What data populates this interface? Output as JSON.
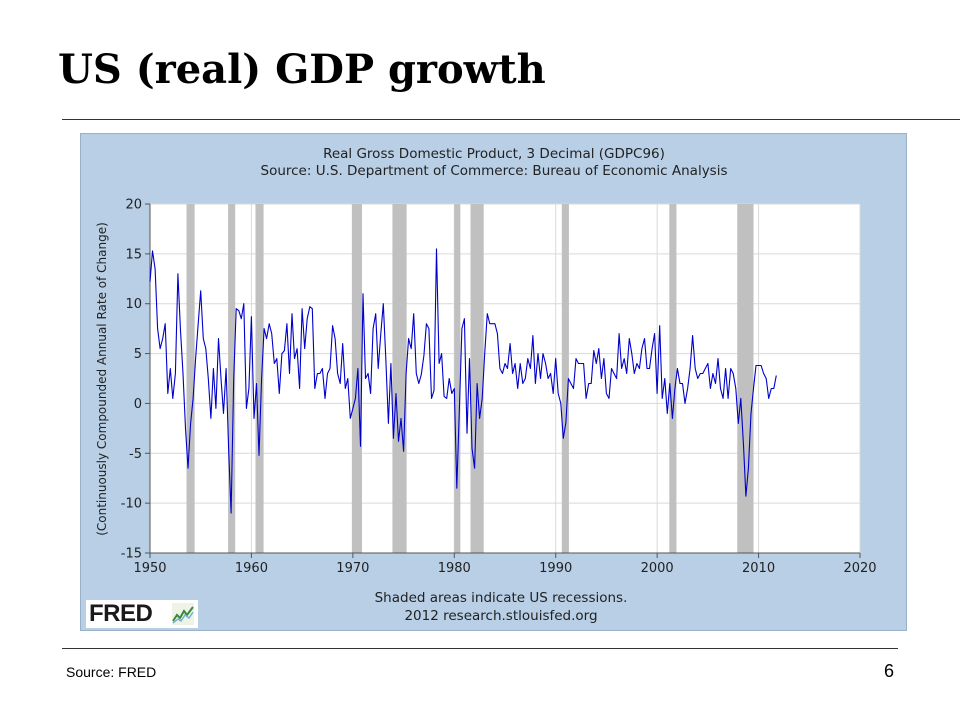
{
  "slide": {
    "title": "US (real) GDP growth",
    "source_note": "Source:  FRED",
    "page_number": "6"
  },
  "logo": {
    "text": "FRED"
  },
  "colors": {
    "background": "#b8cfe6",
    "plot_area": "#ffffff",
    "line": "#0000cc",
    "recession": "#c0c0c0",
    "grid": "#d9d9d9"
  },
  "chart_data": {
    "type": "line",
    "title": "Real Gross Domestic Product, 3 Decimal (GDPC96)",
    "subtitle": "Source: U.S. Department of Commerce: Bureau of Economic Analysis",
    "ylabel": "(Continuously Compounded Annual Rate of Change)",
    "xlabel": "Shaded areas indicate US recessions.",
    "footnote": "2012 research.stlouisfed.org",
    "xlim": [
      1950,
      2020
    ],
    "ylim": [
      -15,
      20
    ],
    "x_ticks": [
      "1950",
      "1960",
      "1970",
      "1980",
      "1990",
      "2000",
      "2010",
      "2020"
    ],
    "y_ticks": [
      "20",
      "15",
      "10",
      "5",
      "0",
      "-5",
      "-10",
      "-15"
    ],
    "grid": true,
    "recessions": [
      [
        1953.6,
        1954.4
      ],
      [
        1957.7,
        1958.4
      ],
      [
        1960.4,
        1961.2
      ],
      [
        1969.9,
        1970.9
      ],
      [
        1973.9,
        1975.3
      ],
      [
        1980.0,
        1980.6
      ],
      [
        1981.6,
        1982.9
      ],
      [
        1990.6,
        1991.3
      ],
      [
        2001.2,
        2001.9
      ],
      [
        2007.9,
        2009.5
      ]
    ],
    "series": [
      {
        "values": [
          [
            1950.0,
            12.2
          ],
          [
            1950.25,
            15.3
          ],
          [
            1950.5,
            13.5
          ],
          [
            1950.75,
            7.5
          ],
          [
            1951.0,
            5.5
          ],
          [
            1951.25,
            6.5
          ],
          [
            1951.5,
            8.0
          ],
          [
            1951.75,
            1.0
          ],
          [
            1952.0,
            3.5
          ],
          [
            1952.25,
            0.5
          ],
          [
            1952.5,
            3.0
          ],
          [
            1952.75,
            13.0
          ],
          [
            1953.0,
            7.5
          ],
          [
            1953.25,
            3.0
          ],
          [
            1953.5,
            -2.5
          ],
          [
            1953.75,
            -6.5
          ],
          [
            1954.0,
            -2.0
          ],
          [
            1954.25,
            0.5
          ],
          [
            1954.5,
            4.5
          ],
          [
            1954.75,
            8.0
          ],
          [
            1955.0,
            11.3
          ],
          [
            1955.25,
            6.5
          ],
          [
            1955.5,
            5.5
          ],
          [
            1955.75,
            2.5
          ],
          [
            1956.0,
            -1.5
          ],
          [
            1956.25,
            3.5
          ],
          [
            1956.5,
            -0.5
          ],
          [
            1956.75,
            6.5
          ],
          [
            1957.0,
            2.5
          ],
          [
            1957.25,
            -1.0
          ],
          [
            1957.5,
            3.5
          ],
          [
            1957.75,
            -4.5
          ],
          [
            1958.0,
            -11.0
          ],
          [
            1958.25,
            2.5
          ],
          [
            1958.5,
            9.5
          ],
          [
            1958.75,
            9.3
          ],
          [
            1959.0,
            8.5
          ],
          [
            1959.25,
            10.0
          ],
          [
            1959.5,
            -0.5
          ],
          [
            1959.75,
            1.5
          ],
          [
            1960.0,
            8.7
          ],
          [
            1960.25,
            -1.5
          ],
          [
            1960.5,
            2.0
          ],
          [
            1960.75,
            -5.2
          ],
          [
            1961.0,
            2.5
          ],
          [
            1961.25,
            7.5
          ],
          [
            1961.5,
            6.5
          ],
          [
            1961.75,
            8.0
          ],
          [
            1962.0,
            7.0
          ],
          [
            1962.25,
            4.0
          ],
          [
            1962.5,
            4.5
          ],
          [
            1962.75,
            1.0
          ],
          [
            1963.0,
            5.0
          ],
          [
            1963.25,
            5.3
          ],
          [
            1963.5,
            8.0
          ],
          [
            1963.75,
            3.0
          ],
          [
            1964.0,
            9.0
          ],
          [
            1964.25,
            4.5
          ],
          [
            1964.5,
            5.5
          ],
          [
            1964.75,
            1.5
          ],
          [
            1965.0,
            9.5
          ],
          [
            1965.25,
            5.5
          ],
          [
            1965.5,
            8.5
          ],
          [
            1965.75,
            9.7
          ],
          [
            1966.0,
            9.5
          ],
          [
            1966.25,
            1.5
          ],
          [
            1966.5,
            3.0
          ],
          [
            1966.75,
            3.0
          ],
          [
            1967.0,
            3.5
          ],
          [
            1967.25,
            0.5
          ],
          [
            1967.5,
            3.0
          ],
          [
            1967.75,
            3.5
          ],
          [
            1968.0,
            7.8
          ],
          [
            1968.25,
            6.5
          ],
          [
            1968.5,
            3.0
          ],
          [
            1968.75,
            2.0
          ],
          [
            1969.0,
            6.0
          ],
          [
            1969.25,
            1.5
          ],
          [
            1969.5,
            2.5
          ],
          [
            1969.75,
            -1.5
          ],
          [
            1970.0,
            -0.5
          ],
          [
            1970.25,
            0.5
          ],
          [
            1970.5,
            3.5
          ],
          [
            1970.75,
            -4.3
          ],
          [
            1971.0,
            11.0
          ],
          [
            1971.25,
            2.5
          ],
          [
            1971.5,
            3.0
          ],
          [
            1971.75,
            1.0
          ],
          [
            1972.0,
            7.5
          ],
          [
            1972.25,
            9.0
          ],
          [
            1972.5,
            3.5
          ],
          [
            1972.75,
            7.0
          ],
          [
            1973.0,
            10.0
          ],
          [
            1973.25,
            4.5
          ],
          [
            1973.5,
            -2.0
          ],
          [
            1973.75,
            4.0
          ],
          [
            1974.0,
            -3.5
          ],
          [
            1974.25,
            1.0
          ],
          [
            1974.5,
            -3.8
          ],
          [
            1974.75,
            -1.5
          ],
          [
            1975.0,
            -4.8
          ],
          [
            1975.25,
            3.0
          ],
          [
            1975.5,
            6.5
          ],
          [
            1975.75,
            5.5
          ],
          [
            1976.0,
            9.0
          ],
          [
            1976.25,
            3.0
          ],
          [
            1976.5,
            2.0
          ],
          [
            1976.75,
            2.9
          ],
          [
            1977.0,
            4.8
          ],
          [
            1977.25,
            8.0
          ],
          [
            1977.5,
            7.5
          ],
          [
            1977.75,
            0.5
          ],
          [
            1978.0,
            1.3
          ],
          [
            1978.25,
            15.5
          ],
          [
            1978.5,
            4.0
          ],
          [
            1978.75,
            5.0
          ],
          [
            1979.0,
            0.7
          ],
          [
            1979.25,
            0.5
          ],
          [
            1979.5,
            2.5
          ],
          [
            1979.75,
            1.0
          ],
          [
            1980.0,
            1.5
          ],
          [
            1980.25,
            -8.5
          ],
          [
            1980.5,
            -0.5
          ],
          [
            1980.75,
            7.5
          ],
          [
            1981.0,
            8.5
          ],
          [
            1981.25,
            -3.0
          ],
          [
            1981.5,
            4.5
          ],
          [
            1981.75,
            -4.5
          ],
          [
            1982.0,
            -6.5
          ],
          [
            1982.25,
            2.0
          ],
          [
            1982.5,
            -1.5
          ],
          [
            1982.75,
            0.5
          ],
          [
            1983.0,
            5.0
          ],
          [
            1983.25,
            9.0
          ],
          [
            1983.5,
            8.0
          ],
          [
            1983.75,
            8.0
          ],
          [
            1984.0,
            8.0
          ],
          [
            1984.25,
            7.0
          ],
          [
            1984.5,
            3.5
          ],
          [
            1984.75,
            3.0
          ],
          [
            1985.0,
            4.0
          ],
          [
            1985.25,
            3.5
          ],
          [
            1985.5,
            6.0
          ],
          [
            1985.75,
            3.0
          ],
          [
            1986.0,
            4.0
          ],
          [
            1986.25,
            1.5
          ],
          [
            1986.5,
            4.0
          ],
          [
            1986.75,
            2.0
          ],
          [
            1987.0,
            2.5
          ],
          [
            1987.25,
            4.5
          ],
          [
            1987.5,
            3.5
          ],
          [
            1987.75,
            6.8
          ],
          [
            1988.0,
            2.0
          ],
          [
            1988.25,
            5.0
          ],
          [
            1988.5,
            2.5
          ],
          [
            1988.75,
            5.0
          ],
          [
            1989.0,
            4.0
          ],
          [
            1989.25,
            2.5
          ],
          [
            1989.5,
            3.0
          ],
          [
            1989.75,
            1.0
          ],
          [
            1990.0,
            4.5
          ],
          [
            1990.25,
            1.0
          ],
          [
            1990.5,
            0.0
          ],
          [
            1990.75,
            -3.5
          ],
          [
            1991.0,
            -1.9
          ],
          [
            1991.25,
            2.5
          ],
          [
            1991.5,
            2.0
          ],
          [
            1991.75,
            1.5
          ],
          [
            1992.0,
            4.5
          ],
          [
            1992.25,
            4.0
          ],
          [
            1992.5,
            4.0
          ],
          [
            1992.75,
            4.0
          ],
          [
            1993.0,
            0.5
          ],
          [
            1993.25,
            2.0
          ],
          [
            1993.5,
            2.0
          ],
          [
            1993.75,
            5.3
          ],
          [
            1994.0,
            4.0
          ],
          [
            1994.25,
            5.5
          ],
          [
            1994.5,
            2.5
          ],
          [
            1994.75,
            4.5
          ],
          [
            1995.0,
            1.0
          ],
          [
            1995.25,
            0.5
          ],
          [
            1995.5,
            3.5
          ],
          [
            1995.75,
            3.0
          ],
          [
            1996.0,
            2.5
          ],
          [
            1996.25,
            7.0
          ],
          [
            1996.5,
            3.5
          ],
          [
            1996.75,
            4.5
          ],
          [
            1997.0,
            3.0
          ],
          [
            1997.25,
            6.5
          ],
          [
            1997.5,
            5.0
          ],
          [
            1997.75,
            3.0
          ],
          [
            1998.0,
            4.0
          ],
          [
            1998.25,
            3.5
          ],
          [
            1998.5,
            5.5
          ],
          [
            1998.75,
            6.5
          ],
          [
            1999.0,
            3.5
          ],
          [
            1999.25,
            3.5
          ],
          [
            1999.5,
            5.5
          ],
          [
            1999.75,
            7.0
          ],
          [
            2000.0,
            1.0
          ],
          [
            2000.25,
            7.8
          ],
          [
            2000.5,
            0.5
          ],
          [
            2000.75,
            2.5
          ],
          [
            2001.0,
            -1.0
          ],
          [
            2001.25,
            2.0
          ],
          [
            2001.5,
            -1.5
          ],
          [
            2001.75,
            1.5
          ],
          [
            2002.0,
            3.5
          ],
          [
            2002.25,
            2.0
          ],
          [
            2002.5,
            2.0
          ],
          [
            2002.75,
            0.0
          ],
          [
            2003.0,
            1.5
          ],
          [
            2003.25,
            3.5
          ],
          [
            2003.5,
            6.8
          ],
          [
            2003.75,
            3.5
          ],
          [
            2004.0,
            2.5
          ],
          [
            2004.25,
            3.0
          ],
          [
            2004.5,
            3.0
          ],
          [
            2004.75,
            3.5
          ],
          [
            2005.0,
            4.0
          ],
          [
            2005.25,
            1.5
          ],
          [
            2005.5,
            3.0
          ],
          [
            2005.75,
            2.0
          ],
          [
            2006.0,
            4.5
          ],
          [
            2006.25,
            1.5
          ],
          [
            2006.5,
            0.5
          ],
          [
            2006.75,
            3.5
          ],
          [
            2007.0,
            0.5
          ],
          [
            2007.25,
            3.5
          ],
          [
            2007.5,
            3.0
          ],
          [
            2007.75,
            1.5
          ],
          [
            2008.0,
            -2.0
          ],
          [
            2008.25,
            0.5
          ],
          [
            2008.5,
            -4.0
          ],
          [
            2008.75,
            -9.3
          ],
          [
            2009.0,
            -6.5
          ],
          [
            2009.25,
            -1.0
          ],
          [
            2009.5,
            1.5
          ],
          [
            2009.75,
            3.8
          ],
          [
            2010.0,
            3.8
          ],
          [
            2010.25,
            3.8
          ],
          [
            2010.5,
            3.0
          ],
          [
            2010.75,
            2.5
          ],
          [
            2011.0,
            0.5
          ],
          [
            2011.25,
            1.5
          ],
          [
            2011.5,
            1.5
          ],
          [
            2011.75,
            2.8
          ]
        ]
      }
    ]
  }
}
